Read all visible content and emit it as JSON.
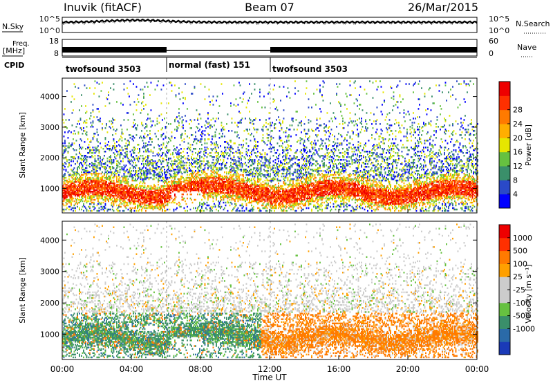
{
  "header": {
    "station": "Inuvik (fitACF)",
    "beam": "Beam 07",
    "date": "26/Mar/2015"
  },
  "summary_panels": {
    "nsky_label": "N.Sky",
    "nsky_ticks": [
      "10^5",
      "10^0"
    ],
    "nsearch_label": "N.Search",
    "nsearch_ticks": [
      "10^5",
      "10^0"
    ],
    "freq_label_line1": "Freq.",
    "freq_label_line2": "[MHz]",
    "freq_ticks": [
      "18",
      "8"
    ],
    "nave_label": "Nave",
    "nave_ticks": [
      "60",
      "0"
    ],
    "cpid_label": "CPID",
    "cpid_segments": [
      {
        "label": "twofsound 3503",
        "start_h": 0,
        "end_h": 6
      },
      {
        "label": "normal (fast) 151",
        "start_h": 6,
        "end_h": 12
      },
      {
        "label": "twofsound 3503",
        "start_h": 12,
        "end_h": 24
      }
    ]
  },
  "colors": {
    "power_scale": [
      "#0000ff",
      "#2a49c8",
      "#3a8f6a",
      "#66c140",
      "#e6e600",
      "#ffae00",
      "#ff7a00",
      "#ff3000",
      "#ee0000"
    ],
    "velocity_scale": [
      "#ee0000",
      "#ff3000",
      "#ff7a00",
      "#ffa000",
      "#cccccc",
      "#cccccc",
      "#66c140",
      "#3a8f6a",
      "#2a6aa8",
      "#1a3ab8"
    ]
  },
  "chart_data": [
    {
      "type": "heatmap",
      "panel": "power",
      "ylabel": "Slant Range [km]",
      "y_ticks": [
        "1000",
        "2000",
        "3000",
        "4000"
      ],
      "ylim": [
        200,
        4600
      ],
      "xlim": [
        0,
        24
      ],
      "colorbar_label": "Power [dB]",
      "colorbar_ticks": [
        "4",
        "8",
        "12",
        "16",
        "20",
        "24",
        "28"
      ],
      "colorbar_range": [
        0,
        32
      ]
    },
    {
      "type": "heatmap",
      "panel": "velocity",
      "ylabel": "Slant Range [km]",
      "y_ticks": [
        "1000",
        "2000",
        "3000",
        "4000"
      ],
      "ylim": [
        200,
        4600
      ],
      "xlim": [
        0,
        24
      ],
      "xlabel": "Time UT",
      "x_ticks": [
        "00:00",
        "04:00",
        "08:00",
        "12:00",
        "16:00",
        "20:00",
        "00:00"
      ],
      "colorbar_label": "Velocity [m s⁻¹]",
      "colorbar_ticks": [
        "1000",
        "500",
        "100",
        "25",
        "-25",
        "-100",
        "-500",
        "-1000"
      ]
    }
  ]
}
